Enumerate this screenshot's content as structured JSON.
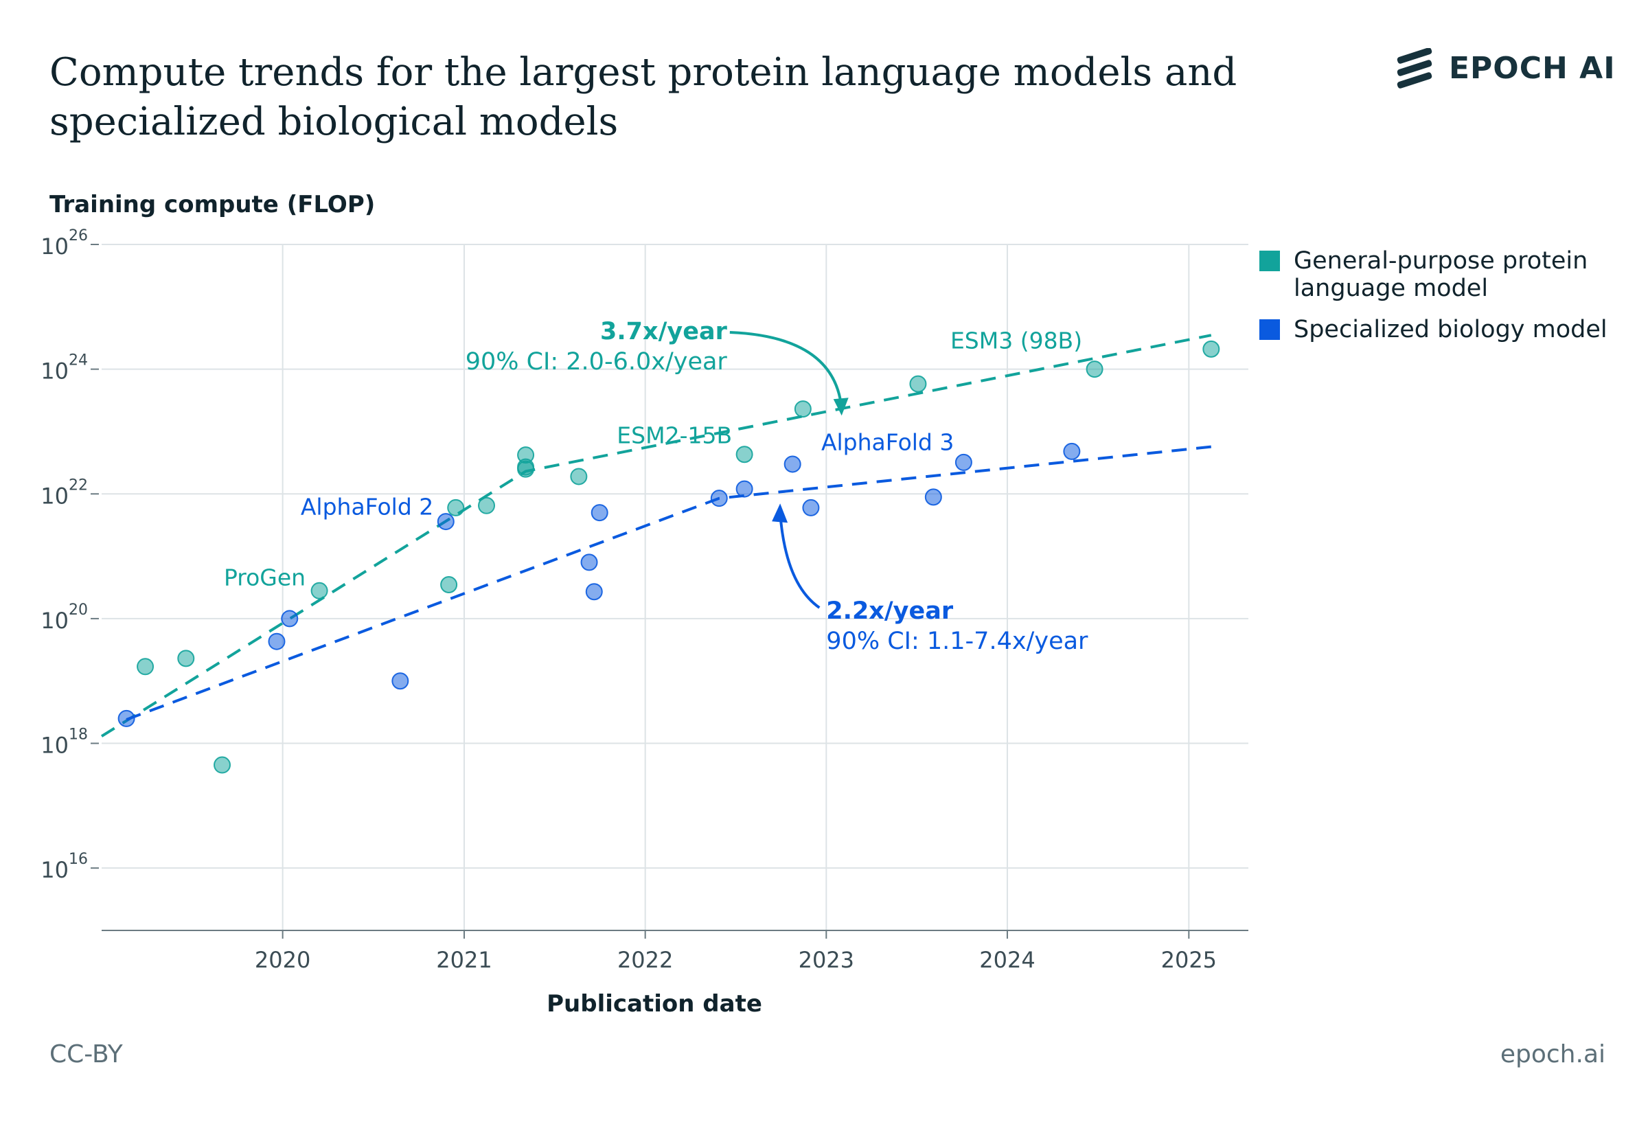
{
  "title": "Compute trends for the largest protein language models and specialized biological models",
  "brand": {
    "name": "EPOCH AI"
  },
  "footer": {
    "license": "CC-BY",
    "site": "epoch.ai"
  },
  "colors": {
    "general": "#12a39b",
    "specialized": "#0a5adf",
    "grid": "#dde3e6",
    "axis": "#6b7b82"
  },
  "chart_data": {
    "type": "scatter",
    "ylabel": "Training compute (FLOP)",
    "xlabel": "Publication date",
    "y_scale": "log10",
    "ylim": [
      1000000000000000.0,
      1e+26
    ],
    "xlim": [
      "2019-01-01",
      "2025-05-01"
    ],
    "x_ticks": [
      "2020",
      "2021",
      "2022",
      "2023",
      "2024",
      "2025"
    ],
    "y_ticks": [
      {
        "base": "10",
        "exp": "16"
      },
      {
        "base": "10",
        "exp": "18"
      },
      {
        "base": "10",
        "exp": "20"
      },
      {
        "base": "10",
        "exp": "22"
      },
      {
        "base": "10",
        "exp": "24"
      },
      {
        "base": "10",
        "exp": "26"
      }
    ],
    "legend_position": "top-right",
    "series": [
      {
        "name": "General-purpose protein language model",
        "color": "#12a39b",
        "points": [
          {
            "date": "2019-03-30",
            "y": 1.7e+19,
            "label": ""
          },
          {
            "date": "2019-06-20",
            "y": 2.3e+19,
            "label": ""
          },
          {
            "date": "2019-09-01",
            "y": 4.5e+17,
            "label": ""
          },
          {
            "date": "2020-03-15",
            "y": 2.8e+20,
            "label": "ProGen"
          },
          {
            "date": "2020-12-01",
            "y": 3.5e+20,
            "label": ""
          },
          {
            "date": "2020-12-15",
            "y": 6e+21,
            "label": ""
          },
          {
            "date": "2021-02-15",
            "y": 6.5e+21,
            "label": ""
          },
          {
            "date": "2021-05-05",
            "y": 4.2e+22,
            "label": ""
          },
          {
            "date": "2021-05-05",
            "y": 2.7e+22,
            "label": ""
          },
          {
            "date": "2021-05-05",
            "y": 2.5e+22,
            "label": ""
          },
          {
            "date": "2021-08-20",
            "y": 1.9e+22,
            "label": ""
          },
          {
            "date": "2022-07-20",
            "y": 4.3e+22,
            "label": "ESM2-15B"
          },
          {
            "date": "2022-11-15",
            "y": 2.3e+23,
            "label": ""
          },
          {
            "date": "2023-07-05",
            "y": 5.8e+23,
            "label": ""
          },
          {
            "date": "2024-06-25",
            "y": 1e+24,
            "label": "ESM3 (98B)"
          },
          {
            "date": "2025-02-15",
            "y": 2.1e+24,
            "label": ""
          }
        ]
      },
      {
        "name": "Specialized biology model",
        "color": "#0a5adf",
        "points": [
          {
            "date": "2019-02-20",
            "y": 2.5e+18,
            "label": ""
          },
          {
            "date": "2019-12-20",
            "y": 4.3e+19,
            "label": ""
          },
          {
            "date": "2020-01-15",
            "y": 1e+20,
            "label": ""
          },
          {
            "date": "2020-08-25",
            "y": 1e+19,
            "label": ""
          },
          {
            "date": "2020-11-25",
            "y": 3.6e+21,
            "label": "AlphaFold 2"
          },
          {
            "date": "2021-09-10",
            "y": 8e+20,
            "label": ""
          },
          {
            "date": "2021-09-20",
            "y": 2.7e+20,
            "label": ""
          },
          {
            "date": "2021-10-01",
            "y": 5e+21,
            "label": ""
          },
          {
            "date": "2022-05-30",
            "y": 8.5e+21,
            "label": ""
          },
          {
            "date": "2022-07-20",
            "y": 1.2e+22,
            "label": ""
          },
          {
            "date": "2022-10-25",
            "y": 3e+22,
            "label": ""
          },
          {
            "date": "2022-12-01",
            "y": 6e+21,
            "label": ""
          },
          {
            "date": "2023-08-05",
            "y": 8.9e+21,
            "label": ""
          },
          {
            "date": "2023-10-05",
            "y": 3.2e+22,
            "label": "AlphaFold 3"
          },
          {
            "date": "2024-05-10",
            "y": 4.8e+22,
            "label": ""
          }
        ]
      }
    ],
    "trends": [
      {
        "series": "General-purpose protein language model",
        "color": "#12a39b",
        "points": [
          {
            "date": "2019-01-01",
            "y": 1.3e+18
          },
          {
            "date": "2021-05-05",
            "y": 2.3e+22
          },
          {
            "date": "2025-02-15",
            "y": 3.5e+24
          }
        ],
        "rate": "3.7x/year",
        "ci": "90% CI: 2.0-6.0x/year"
      },
      {
        "series": "Specialized biology model",
        "color": "#0a5adf",
        "points": [
          {
            "date": "2019-02-20",
            "y": 2.4e+18
          },
          {
            "date": "2022-05-30",
            "y": 8.5e+21
          },
          {
            "date": "2025-02-15",
            "y": 5.7e+22
          }
        ],
        "rate": "2.2x/year",
        "ci": "90% CI: 1.1-7.4x/year"
      }
    ]
  }
}
